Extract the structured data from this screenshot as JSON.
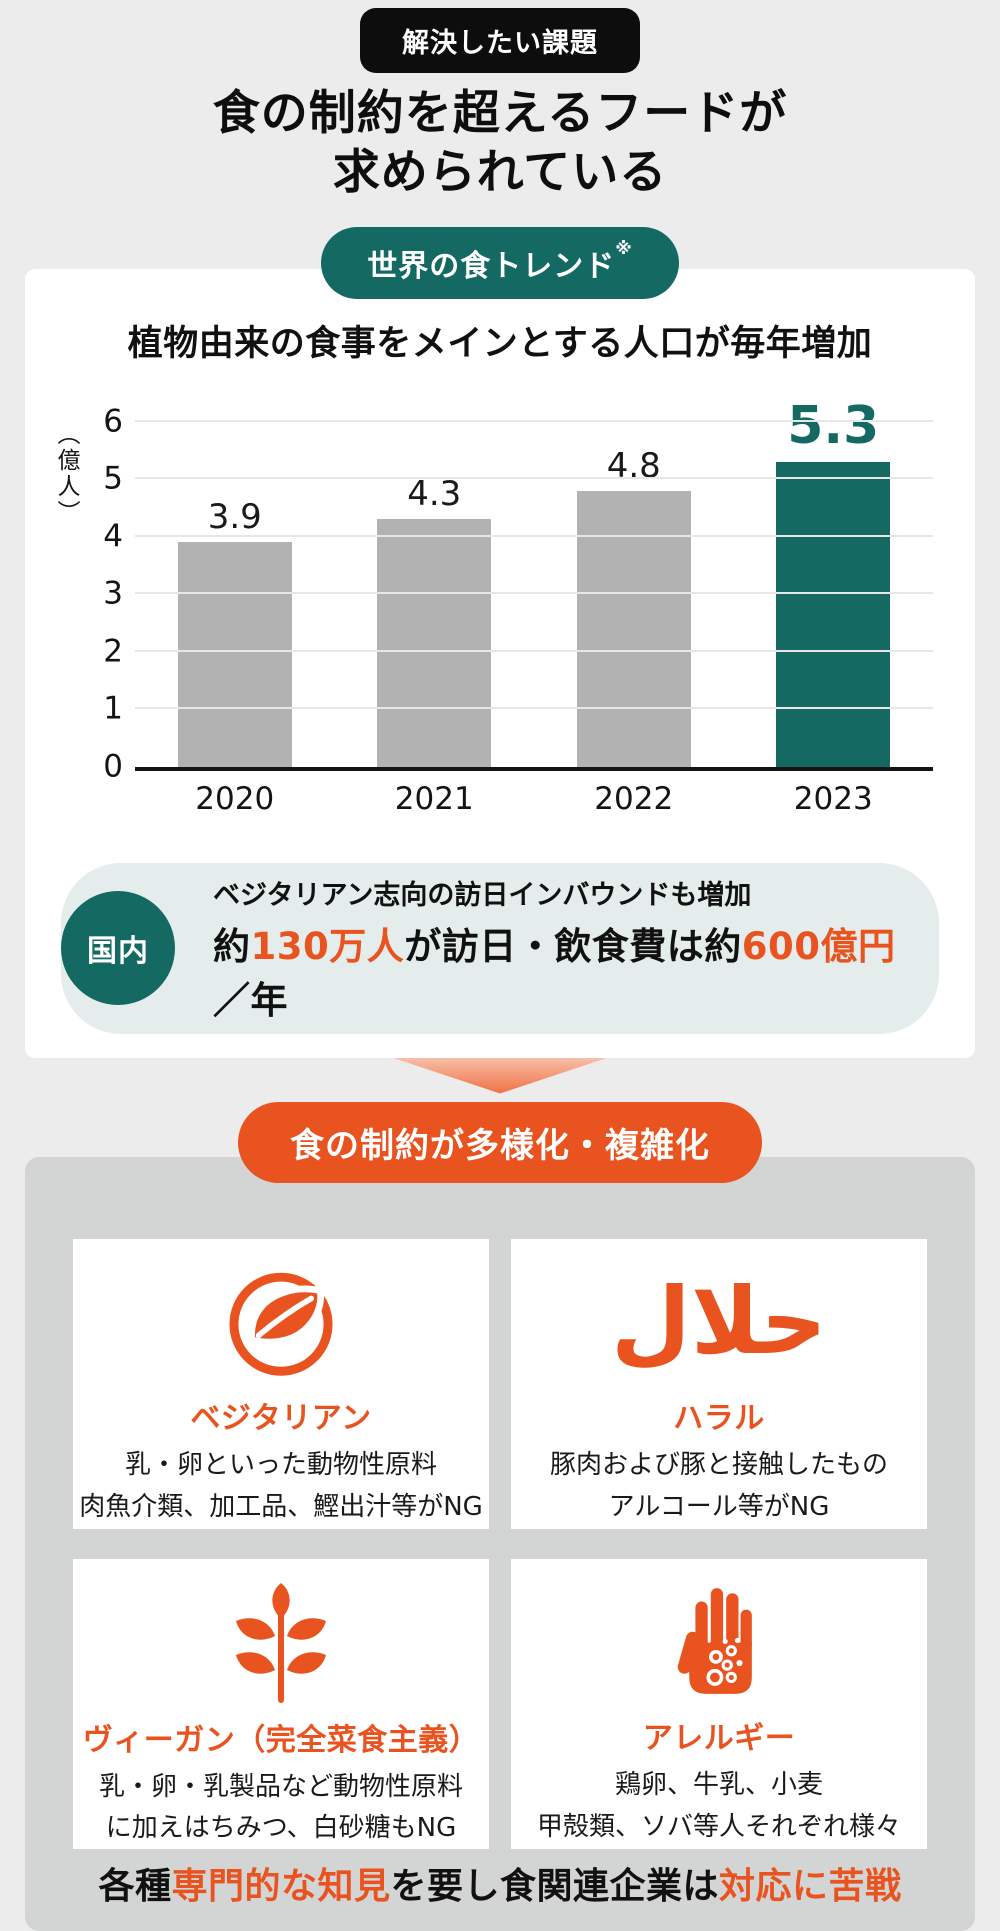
{
  "colors": {
    "page_background": "#ececec",
    "teal": "#146a62",
    "orange": "#e8531f",
    "bar_gray": "#b2b2b3",
    "card_gray": "#d3d5d4",
    "domestic_bg": "#e4edeb",
    "black": "#0d0d0d"
  },
  "header": {
    "badge": "解決したい課題",
    "title_line1": "食の制約を超えるフードが",
    "title_line2": "求められている"
  },
  "trend_card": {
    "badge": "世界の食トレンド",
    "badge_note": "※",
    "chart_title": "植物由来の食事をメインとする人口が毎年増加"
  },
  "chart_data": {
    "type": "bar",
    "title": "植物由来の食事をメインとする人口が毎年増加",
    "categories": [
      "2020",
      "2021",
      "2022",
      "2023"
    ],
    "values": [
      3.9,
      4.3,
      4.8,
      5.3
    ],
    "value_labels": [
      "3.9",
      "4.3",
      "4.8",
      "5.3"
    ],
    "xlabel": "",
    "ylabel": "（億人）",
    "ylim": [
      0,
      6
    ],
    "yticks": [
      0,
      1,
      2,
      3,
      4,
      5,
      6
    ],
    "grid": true,
    "legend": false,
    "bar_color": "#b2b2b3",
    "highlight_index": 3,
    "highlight_color": "#146a62"
  },
  "domestic": {
    "badge": "国内",
    "line1": "ベジタリアン志向の訪日インバウンドも増加",
    "line2_segments": [
      {
        "text": "約",
        "color": "black"
      },
      {
        "text": "130万人",
        "color": "orange"
      },
      {
        "text": "が訪日・飲食費は約",
        "color": "black"
      },
      {
        "text": "600億円",
        "color": "orange"
      },
      {
        "text": "／年",
        "color": "black"
      }
    ]
  },
  "restrictions": {
    "header": "食の制約が多様化・複雑化",
    "items": [
      {
        "icon": "vegetarian-leaf-icon",
        "label": "ベジタリアン",
        "line1": "乳・卵といった動物性原料",
        "line2": "肉魚介類、加工品、鰹出汁等がNG"
      },
      {
        "icon": "halal-icon",
        "icon_glyph": "حلال",
        "label": "ハラル",
        "line1": "豚肉および豚と接触したもの",
        "line2": "アルコール等がNG"
      },
      {
        "icon": "vegan-plant-icon",
        "label": "ヴィーガン（完全菜食主義）",
        "line1": "乳・卵・乳製品など動物性原料",
        "line2": "に加えはちみつ、白砂糖もNG"
      },
      {
        "icon": "allergy-hand-icon",
        "label": "アレルギー",
        "line1": "鶏卵、牛乳、小麦",
        "line2": "甲殻類、ソバ等人それぞれ様々"
      }
    ],
    "footer_segments": [
      {
        "text": "各種",
        "color": "black"
      },
      {
        "text": "専門的な知見",
        "color": "orange"
      },
      {
        "text": "を要し食関連企業は",
        "color": "black"
      },
      {
        "text": "対応に苦戦",
        "color": "orange"
      }
    ]
  }
}
